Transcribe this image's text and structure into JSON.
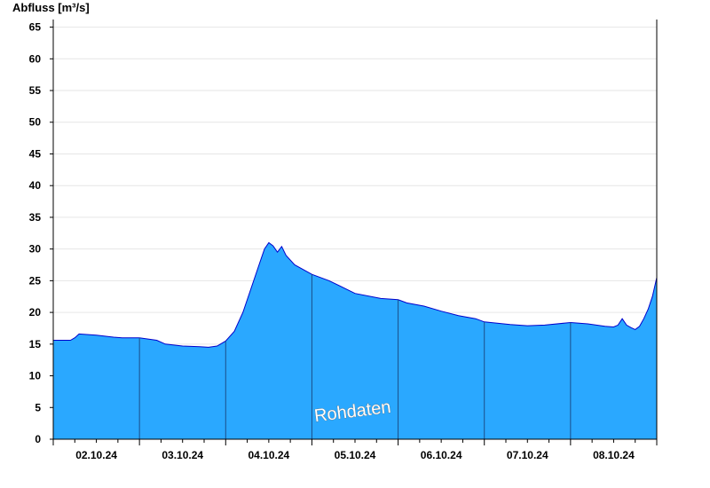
{
  "chart_data": {
    "type": "area",
    "ylabel": "Abfluss [m³/s]",
    "ylim": [
      0,
      65
    ],
    "yticks": [
      0,
      5,
      10,
      15,
      20,
      25,
      30,
      35,
      40,
      45,
      50,
      55,
      60,
      65
    ],
    "xlim_days": [
      0,
      7
    ],
    "xtick_labels": [
      "02.10.24",
      "03.10.24",
      "04.10.24",
      "05.10.24",
      "06.10.24",
      "07.10.24",
      "08.10.24"
    ],
    "grid": true,
    "watermark": "Rohdaten",
    "fill_color": "#2aa8ff",
    "line_color": "#0000cc",
    "series": [
      {
        "x_days": [
          0.0,
          0.2,
          0.25,
          0.3,
          0.5,
          0.7,
          0.8,
          1.0,
          1.1,
          1.2,
          1.3,
          1.5,
          1.7,
          1.8,
          1.9,
          2.0,
          2.1,
          2.2,
          2.3,
          2.4,
          2.45,
          2.5,
          2.55,
          2.6,
          2.65,
          2.7,
          2.8,
          3.0,
          3.2,
          3.5,
          3.8,
          4.0,
          4.1,
          4.3,
          4.5,
          4.7,
          4.9,
          5.0,
          5.3,
          5.5,
          5.7,
          6.0,
          6.2,
          6.4,
          6.5,
          6.55,
          6.6,
          6.65,
          6.7,
          6.75,
          6.8,
          6.85,
          6.9,
          6.95,
          7.0
        ],
        "values": [
          15.6,
          15.6,
          16.0,
          16.6,
          16.4,
          16.1,
          16.0,
          16.0,
          15.8,
          15.6,
          15.0,
          14.7,
          14.6,
          14.5,
          14.7,
          15.5,
          17.0,
          20.0,
          24.0,
          28.0,
          30.0,
          31.0,
          30.5,
          29.5,
          30.4,
          29.0,
          27.5,
          26.0,
          25.0,
          23.0,
          22.2,
          22.0,
          21.5,
          21.0,
          20.2,
          19.5,
          19.0,
          18.5,
          18.1,
          17.9,
          18.0,
          18.4,
          18.2,
          17.8,
          17.7,
          18.0,
          19.0,
          18.0,
          17.6,
          17.3,
          17.8,
          19.0,
          20.5,
          22.5,
          25.5
        ]
      }
    ]
  }
}
